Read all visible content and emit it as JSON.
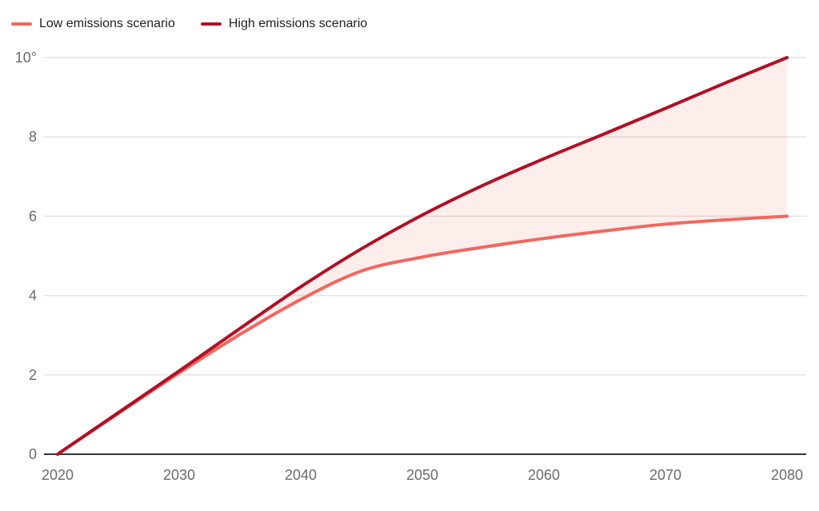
{
  "chart_data": {
    "type": "line",
    "x": [
      2020,
      2025,
      2030,
      2035,
      2040,
      2045,
      2050,
      2055,
      2060,
      2065,
      2070,
      2075,
      2080
    ],
    "series": [
      {
        "name": "Low emissions scenario",
        "color": "#F2675E",
        "values": [
          0,
          1.03,
          2.05,
          3.02,
          3.9,
          4.62,
          4.97,
          5.22,
          5.44,
          5.63,
          5.8,
          5.91,
          6.0
        ]
      },
      {
        "name": "High emissions scenario",
        "color": "#B01025",
        "values": [
          0,
          1.05,
          2.1,
          3.17,
          4.22,
          5.18,
          6.03,
          6.78,
          7.45,
          8.08,
          8.72,
          9.37,
          10.0
        ]
      }
    ],
    "title": "",
    "xlabel": "",
    "ylabel": "",
    "xlim": [
      2020,
      2080
    ],
    "ylim": [
      0,
      10
    ],
    "x_ticks": [
      2020,
      2030,
      2040,
      2050,
      2060,
      2070,
      2080
    ],
    "x_tick_labels": [
      "2020",
      "2030",
      "2040",
      "2050",
      "2060",
      "2070",
      "2080"
    ],
    "y_ticks": [
      0,
      2,
      4,
      6,
      8,
      10
    ],
    "y_tick_labels": [
      "0",
      "2",
      "4",
      "6",
      "8",
      "10°"
    ],
    "grid": true,
    "legend_position": "top-left",
    "band_between_series": true,
    "band_fill": "rgba(242,103,94,0.12)",
    "colors": {
      "grid": "#E3E3E3",
      "axis_baseline": "#333333",
      "tick_label": "#6B6B6B",
      "legend_text": "#202124",
      "background": "#FFFFFF"
    }
  }
}
